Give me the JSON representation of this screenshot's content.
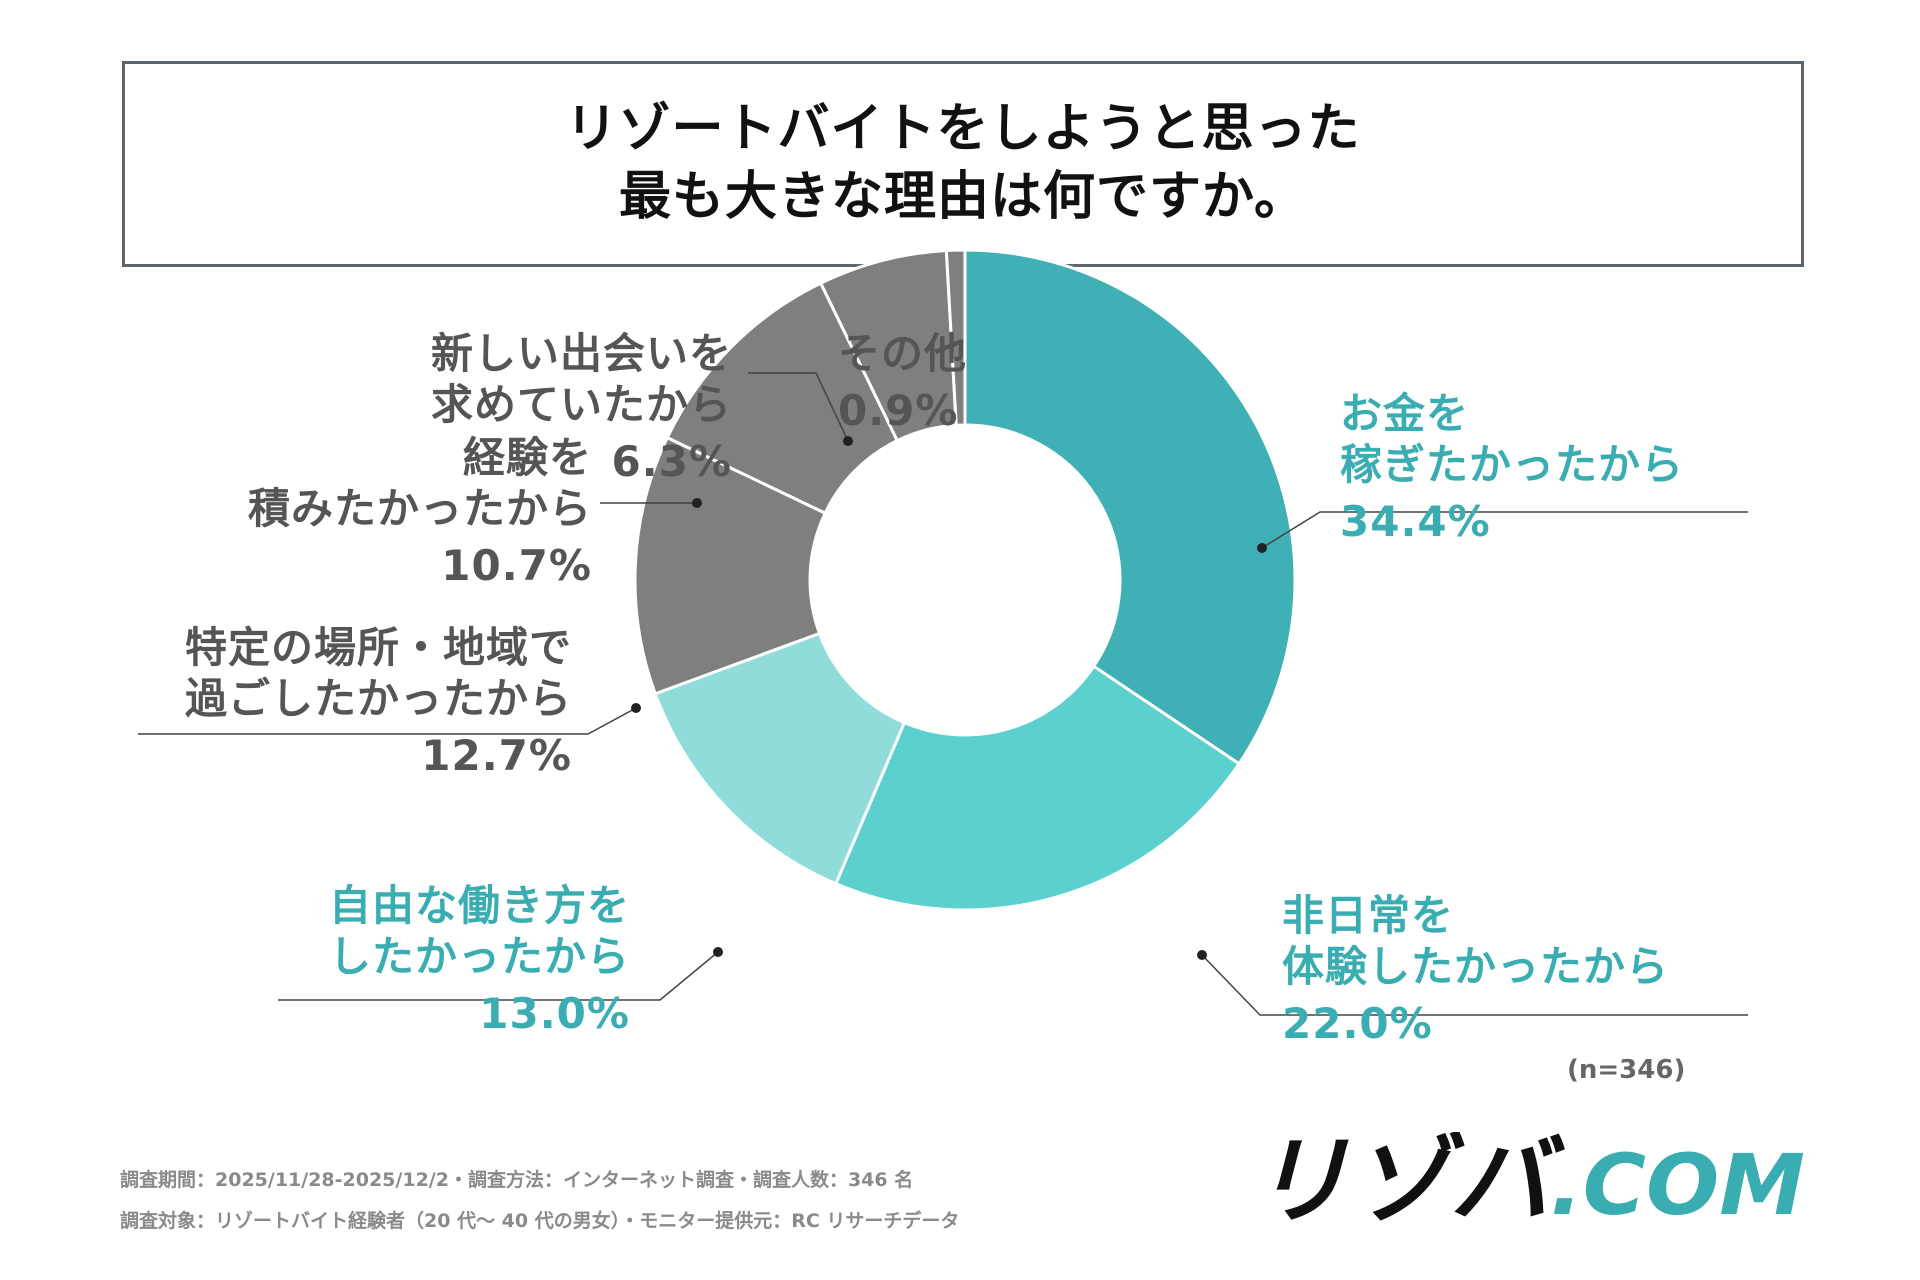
{
  "title": {
    "line1": "リゾートバイトをしようと思った",
    "line2": "最も大きな理由は何ですか。"
  },
  "chart_data": {
    "type": "pie",
    "donut": true,
    "title": "リゾートバイトをしようと思った最も大きな理由は何ですか。",
    "n_label": "(n=346)",
    "slices": [
      {
        "label_lines": [
          "お金を",
          "稼ぎたかったから"
        ],
        "value": 34.4,
        "pct": "34.4%",
        "color": "#3fb0b5",
        "text_color": "#3aadb2"
      },
      {
        "label_lines": [
          "非日常を",
          "体験したかったから"
        ],
        "value": 22.0,
        "pct": "22.0%",
        "color": "#5ccfcf",
        "text_color": "#3aadb2"
      },
      {
        "label_lines": [
          "自由な働き方を",
          "したかったから"
        ],
        "value": 13.0,
        "pct": "13.0%",
        "color": "#8fdcda",
        "text_color": "#3aadb2"
      },
      {
        "label_lines": [
          "特定の場所・地域で",
          "過ごしたかったから"
        ],
        "value": 12.7,
        "pct": "12.7%",
        "color": "#7f7f7f",
        "text_color": "#555555"
      },
      {
        "label_lines": [
          "経験を",
          "積みたかったから"
        ],
        "value": 10.7,
        "pct": "10.7%",
        "color": "#7f7f7f",
        "text_color": "#555555"
      },
      {
        "label_lines": [
          "新しい出会いを",
          "求めていたから"
        ],
        "value": 6.3,
        "pct": "6.3%",
        "color": "#7f7f7f",
        "text_color": "#555555"
      },
      {
        "label_lines": [
          "その他"
        ],
        "value": 0.9,
        "pct": "0.9%",
        "color": "#7f7f7f",
        "text_color": "#555555"
      }
    ]
  },
  "footer": {
    "line1": "調査期間：2025/11/28-2025/12/2・調査方法：インターネット調査・調査人数：346 名",
    "line2": "調査対象：リゾートバイト経験者（20 代～ 40 代の男女）・モニター提供元：RC リサーチデータ"
  },
  "logo": {
    "text": "リゾバ.COM",
    "part1": "リゾバ",
    "part2": ".COM",
    "color_dark": "#111111",
    "color_accent": "#3aadb2"
  }
}
